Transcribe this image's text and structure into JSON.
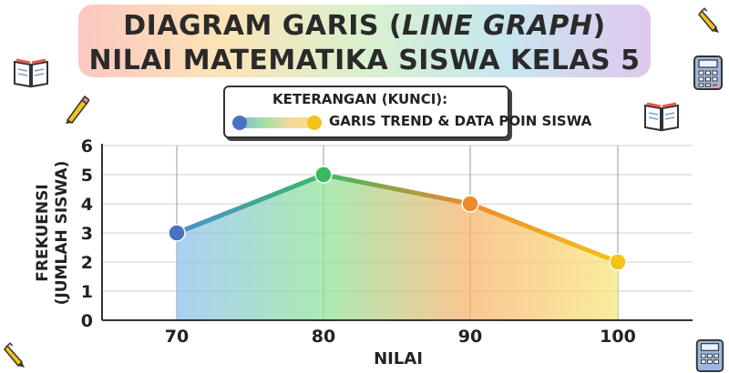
{
  "chart_data": {
    "type": "line",
    "title": [
      "DIAGRAM GARIS (",
      "LINE GRAPH",
      ")"
    ],
    "subtitle": "NILAI MATEMATIKA SISWA KELAS 5",
    "legend_title": "KETERANGAN (KUNCI):",
    "legend_label": "GARIS TREND & DATA POIN SISWA",
    "xlabel": "NILAI",
    "ylabel_line1": "FREKUENSI",
    "ylabel_line2": "(JUMLAH SISWA)",
    "categories": [
      "70",
      "80",
      "90",
      "100"
    ],
    "values": [
      3,
      5,
      4,
      2
    ],
    "yticks": [
      "0",
      "1",
      "2",
      "3",
      "4",
      "5",
      "6"
    ],
    "ylim": [
      0,
      6
    ],
    "grid": true,
    "legend_position": "top-center",
    "point_colors": [
      "#4a72c4",
      "#3cb863",
      "#ee8a2c",
      "#f2c318"
    ]
  }
}
